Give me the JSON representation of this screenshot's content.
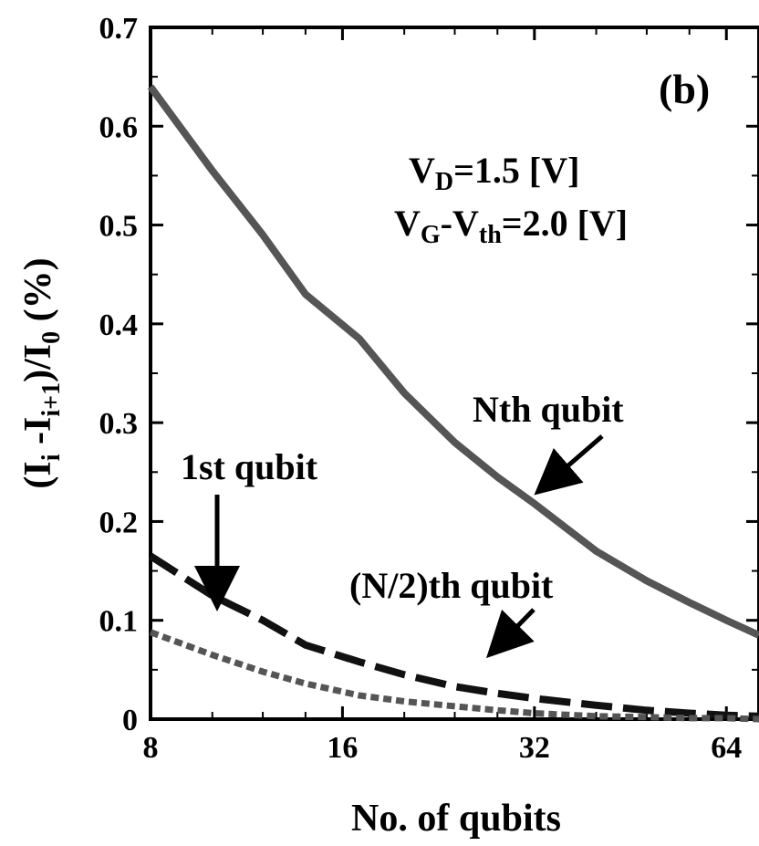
{
  "chart_data": {
    "type": "line",
    "x_scale": "log2",
    "xlim": [
      8,
      72
    ],
    "ylim": [
      0,
      0.7
    ],
    "x_ticks": [
      8,
      16,
      32,
      64
    ],
    "x_tick_labels": [
      "8",
      "16",
      "32",
      "64"
    ],
    "y_ticks": [
      0,
      0.1,
      0.2,
      0.3,
      0.4,
      0.5,
      0.6,
      0.7
    ],
    "y_tick_labels": [
      "0",
      "0.1",
      "0.2",
      "0.3",
      "0.4",
      "0.5",
      "0.6",
      "0.7"
    ],
    "xlabel": "No. of qubits",
    "ylabel": {
      "p1": "(I",
      "s1": "i",
      "p2": " -I",
      "s2": "i+1",
      "p3": ")/I",
      "s3": "0",
      "p4": " (%)"
    },
    "panel_label": "(b)",
    "conditions": {
      "line1": {
        "a": "V",
        "a_sub": "D",
        "b": "=1.5 [V]"
      },
      "line2": {
        "a": "V",
        "a_sub": "G",
        "b": "-V",
        "b_sub": "th",
        "c": "=2.0 [V]"
      }
    },
    "series": [
      {
        "name": "Nth qubit",
        "style": "solid",
        "color": "#555555",
        "x": [
          8,
          10,
          12,
          14,
          17,
          20,
          24,
          28,
          32,
          40,
          48,
          56,
          64,
          72
        ],
        "y": [
          0.64,
          0.555,
          0.49,
          0.43,
          0.385,
          0.33,
          0.28,
          0.245,
          0.218,
          0.17,
          0.14,
          0.118,
          0.1,
          0.085
        ]
      },
      {
        "name": "(N/2)th qubit",
        "style": "dashed",
        "color": "#111111",
        "x": [
          8,
          10,
          12,
          14,
          17,
          20,
          24,
          28,
          32,
          40,
          48,
          56,
          64,
          72
        ],
        "y": [
          0.165,
          0.125,
          0.1,
          0.075,
          0.058,
          0.045,
          0.033,
          0.026,
          0.021,
          0.014,
          0.009,
          0.006,
          0.004,
          0.003
        ]
      },
      {
        "name": "1st qubit",
        "style": "dotted",
        "color": "#555555",
        "x": [
          8,
          10,
          12,
          14,
          17,
          20,
          24,
          28,
          32,
          40,
          48,
          56,
          64,
          72
        ],
        "y": [
          0.088,
          0.065,
          0.048,
          0.036,
          0.024,
          0.018,
          0.013,
          0.009,
          0.006,
          0.003,
          0.002,
          0.001,
          0.001,
          0.0
        ]
      }
    ],
    "annotations": [
      {
        "text": "Nth qubit",
        "points_to": "Nth qubit"
      },
      {
        "text": "(N/2)th qubit",
        "points_to": "(N/2)th qubit"
      },
      {
        "text": "1st qubit",
        "points_to": "1st qubit"
      }
    ]
  }
}
